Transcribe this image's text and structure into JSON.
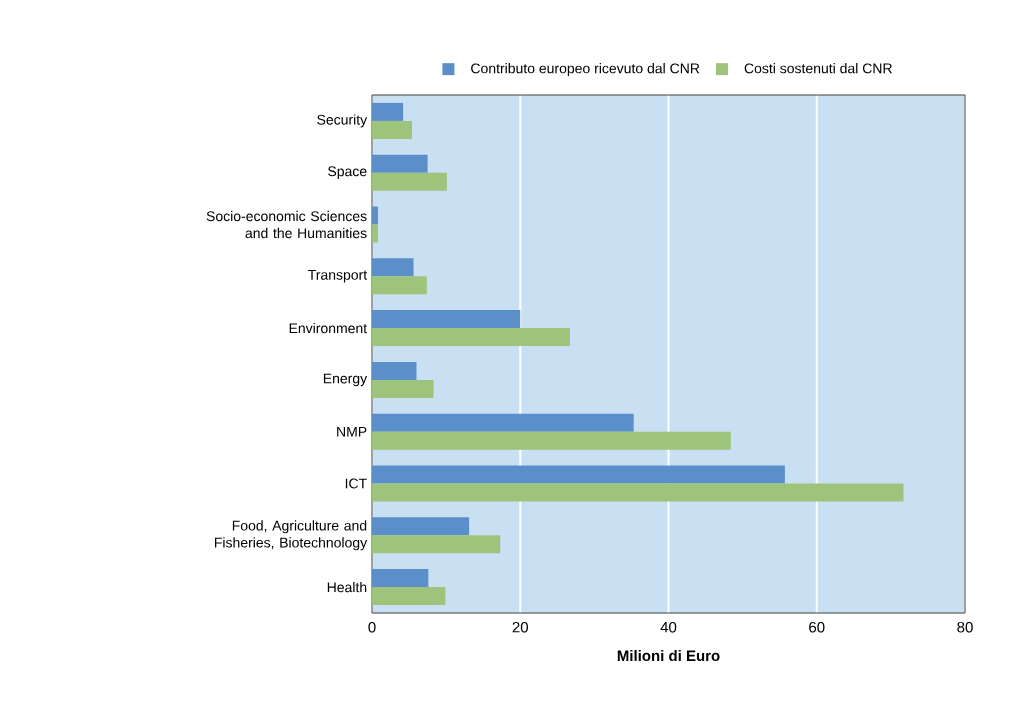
{
  "chart_data": {
    "type": "bar",
    "orientation": "horizontal",
    "xlabel": "Milioni di Euro",
    "categories": [
      "Security",
      "Space",
      "Socio-economic Sciences and the Humanities",
      "Transport",
      "Environment",
      "Energy",
      "NMP",
      "ICT",
      "Food, Agriculture and Fisheries, Biotechnology",
      "Health"
    ],
    "series": [
      {
        "name": "Contributo europeo ricevuto dal CNR",
        "color": "#5b8fc9",
        "values": [
          4.2,
          7.5,
          0.8,
          5.6,
          20.0,
          6.0,
          35.3,
          55.7,
          13.1,
          7.6
        ]
      },
      {
        "name": "Costi sostenuti dal CNR",
        "color": "#9dc47a",
        "values": [
          5.4,
          10.1,
          0.8,
          7.4,
          26.7,
          8.3,
          48.4,
          71.7,
          17.3,
          9.9
        ]
      }
    ],
    "xlim": [
      0,
      80
    ],
    "xticks": [
      0,
      20,
      40,
      60,
      80
    ],
    "grid": "x",
    "legend": "top"
  }
}
